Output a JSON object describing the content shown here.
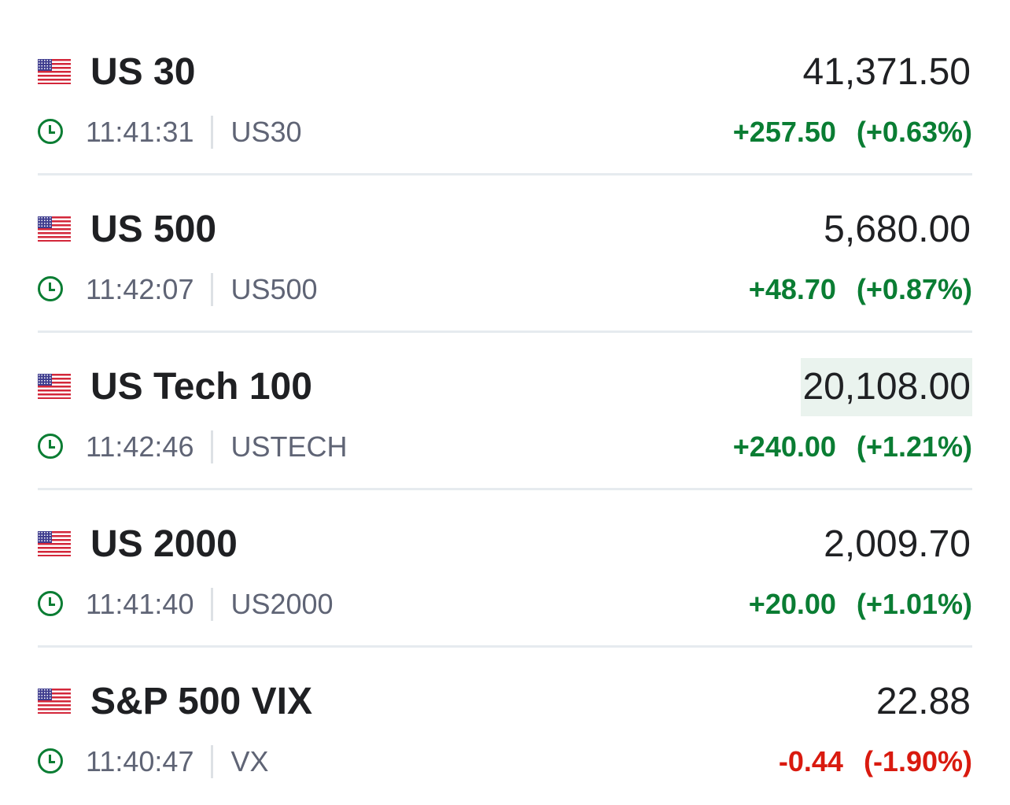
{
  "colors": {
    "positive": "#0a7d33",
    "negative": "#d91a0f",
    "highlight": "#eaf3ee"
  },
  "rows": [
    {
      "name": "US 30",
      "price": "41,371.50",
      "time": "11:41:31",
      "symbol": "US30",
      "change": "+257.50",
      "percent": "(+0.63%)",
      "direction": "up",
      "flag": "us-flag-icon",
      "highlighted": false
    },
    {
      "name": "US 500",
      "price": "5,680.00",
      "time": "11:42:07",
      "symbol": "US500",
      "change": "+48.70",
      "percent": "(+0.87%)",
      "direction": "up",
      "flag": "us-flag-icon",
      "highlighted": false
    },
    {
      "name": "US Tech 100",
      "price": "20,108.00",
      "time": "11:42:46",
      "symbol": "USTECH",
      "change": "+240.00",
      "percent": "(+1.21%)",
      "direction": "up",
      "flag": "us-flag-icon",
      "highlighted": true
    },
    {
      "name": "US 2000",
      "price": "2,009.70",
      "time": "11:41:40",
      "symbol": "US2000",
      "change": "+20.00",
      "percent": "(+1.01%)",
      "direction": "up",
      "flag": "us-flag-icon",
      "highlighted": false
    },
    {
      "name": "S&P 500 VIX",
      "price": "22.88",
      "time": "11:40:47",
      "symbol": "VX",
      "change": "-0.44",
      "percent": "(-1.90%)",
      "direction": "down",
      "flag": "us-flag-icon",
      "highlighted": false
    }
  ]
}
